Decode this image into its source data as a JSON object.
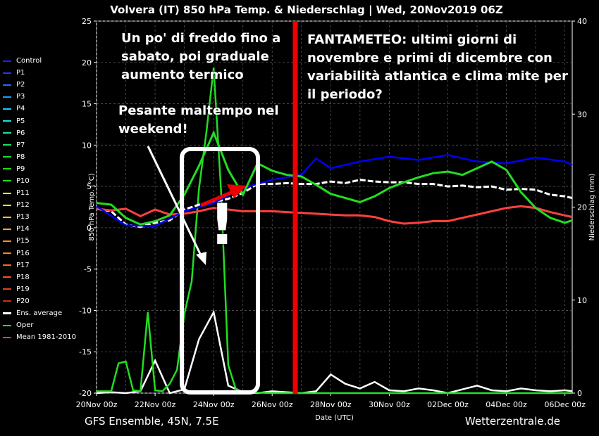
{
  "chart_data": {
    "type": "line",
    "title": "Volvera  (IT)  850 hPa Temp. & Niederschlag | Wed, 20Nov2019 06Z",
    "xlabel": "Date (UTC)",
    "ylabel": "850 hPa Temp. (°C)",
    "y2label": "Niederschlag (mm)",
    "x_ticks": [
      "20Nov 00z",
      "22Nov 00z",
      "24Nov 00z",
      "26Nov 00z",
      "28Nov 00z",
      "30Nov 00z",
      "02Dec 00z",
      "04Dec 00z",
      "06Dec 00z"
    ],
    "xlim_days": [
      0,
      16.25
    ],
    "ylim": [
      -20,
      25
    ],
    "y_ticks": [
      25,
      20,
      15,
      10,
      5,
      0,
      -5,
      -10,
      -15,
      -20
    ],
    "y2lim": [
      0,
      40
    ],
    "y2_ticks": [
      40,
      30,
      20,
      10,
      0
    ],
    "grid": true,
    "legend_position": "left",
    "series": [
      {
        "name": "Ens. average",
        "color": "#ffffff",
        "x_days": [
          0,
          0.5,
          1,
          1.5,
          2,
          2.5,
          3,
          3.5,
          4,
          4.5,
          5,
          5.5,
          6,
          6.5,
          7,
          7.5,
          8,
          8.5,
          9,
          9.5,
          10,
          10.5,
          11,
          11.5,
          12,
          12.5,
          13,
          13.5,
          14,
          14.5,
          15,
          15.5,
          16,
          16.25
        ],
        "temp": [
          2.3,
          2.0,
          0.4,
          0.1,
          0.6,
          0.9,
          2.2,
          2.8,
          3.1,
          3.5,
          4.2,
          5.3,
          5.3,
          5.4,
          5.3,
          5.3,
          5.6,
          5.4,
          5.8,
          5.6,
          5.5,
          5.5,
          5.3,
          5.3,
          5.0,
          5.1,
          4.9,
          5.0,
          4.6,
          4.7,
          4.6,
          4.0,
          3.8,
          3.6
        ]
      },
      {
        "name": "Mean 1981-2010",
        "color": "#ff4040",
        "x_days": [
          0,
          0.5,
          1,
          1.5,
          2,
          2.5,
          3,
          3.5,
          4,
          4.5,
          5,
          5.5,
          6,
          6.5,
          7,
          7.5,
          8,
          8.5,
          9,
          9.5,
          10,
          10.5,
          11,
          11.5,
          12,
          12.5,
          13,
          13.5,
          14,
          14.5,
          15,
          15.5,
          16,
          16.25
        ],
        "temp": [
          2.3,
          2.1,
          2.3,
          1.4,
          2.2,
          1.6,
          1.7,
          2.0,
          2.4,
          2.2,
          2.0,
          2.0,
          2.0,
          1.9,
          1.8,
          1.7,
          1.6,
          1.5,
          1.5,
          1.3,
          0.8,
          0.5,
          0.6,
          0.8,
          0.8,
          1.2,
          1.6,
          2.0,
          2.4,
          2.6,
          2.4,
          1.9,
          1.5,
          1.3
        ]
      },
      {
        "name": "Control",
        "color": "#0000ff",
        "x_days": [
          0,
          1,
          2,
          3,
          4,
          5,
          6,
          7,
          7.5,
          8,
          9,
          10,
          11,
          12,
          13,
          14,
          15,
          16,
          16.25
        ],
        "temp": [
          2.6,
          0.3,
          0.2,
          2.0,
          3.0,
          4.8,
          5.8,
          6.4,
          8.4,
          7.2,
          8.0,
          8.6,
          8.2,
          8.8,
          8.0,
          7.8,
          8.5,
          8.0,
          7.6
        ]
      },
      {
        "name": "Oper",
        "color": "#22dd22",
        "x_days": [
          0,
          0.5,
          1,
          1.5,
          2,
          2.5,
          3,
          3.5,
          4,
          4.5,
          5,
          5.5,
          6,
          6.5,
          7,
          7.5,
          8,
          8.5,
          9,
          9.5,
          10,
          10.5,
          11,
          11.5,
          12,
          12.5,
          13,
          13.5,
          14,
          14.5,
          15,
          15.5,
          16,
          16.25
        ],
        "temp": [
          3.0,
          2.8,
          1.2,
          0.4,
          0.8,
          1.5,
          4.0,
          7.5,
          11.5,
          7.0,
          4.0,
          7.8,
          6.9,
          6.4,
          6.2,
          5.2,
          4.1,
          3.6,
          3.1,
          3.8,
          4.8,
          5.5,
          6.1,
          6.6,
          6.8,
          6.4,
          7.2,
          8.0,
          7.0,
          4.3,
          2.4,
          1.2,
          0.6,
          0.9
        ]
      }
    ],
    "precip_series": [
      {
        "name": "Ens. average precip",
        "color": "#ffffff",
        "x_days": [
          0,
          0.5,
          1,
          1.5,
          2,
          2.5,
          3,
          3.5,
          4,
          4.5,
          5,
          5.5,
          6,
          6.5,
          7,
          7.5,
          8,
          8.5,
          9,
          9.5,
          10,
          10.5,
          11,
          11.5,
          12,
          12.5,
          13,
          13.5,
          14,
          14.5,
          15,
          15.5,
          16,
          16.25
        ],
        "precip": [
          0,
          0.1,
          0,
          0.2,
          3.5,
          0,
          0.4,
          5.8,
          8.7,
          0.8,
          0.1,
          0,
          0.2,
          0.1,
          0,
          0.2,
          2.0,
          1.0,
          0.5,
          1.2,
          0.3,
          0.2,
          0.5,
          0.3,
          0,
          0.4,
          0.8,
          0.3,
          0.2,
          0.5,
          0.3,
          0.2,
          0.3,
          0.2
        ]
      },
      {
        "name": "Oper precip",
        "color": "#22dd22",
        "x_days": [
          0,
          0.5,
          0.75,
          1,
          1.25,
          1.5,
          1.75,
          2,
          2.25,
          2.5,
          2.75,
          3,
          3.25,
          3.5,
          3.75,
          4,
          4.25,
          4.5,
          4.75,
          5,
          6,
          8,
          10,
          12,
          14,
          16,
          16.25
        ],
        "precip": [
          0.2,
          0.2,
          3.2,
          3.4,
          0.3,
          0.2,
          8.7,
          0.3,
          0.2,
          1.0,
          2.5,
          8.5,
          12.0,
          22.0,
          28.0,
          35.0,
          22.0,
          3.0,
          0.5,
          0.1,
          0,
          0,
          0,
          0,
          0,
          0,
          0
        ]
      }
    ],
    "legend": [
      "Control",
      "P1",
      "P2",
      "P3",
      "P4",
      "P5",
      "P6",
      "P7",
      "P8",
      "P9",
      "P10",
      "P11",
      "P12",
      "P13",
      "P14",
      "P15",
      "P16",
      "P17",
      "P18",
      "P19",
      "P20",
      "Ens. average",
      "Oper",
      "Mean 1981-2010"
    ],
    "legend_colors": [
      "#2020ff",
      "#1a3cff",
      "#1a6cff",
      "#1a9cff",
      "#1ac8ff",
      "#1ae0e0",
      "#1ae0a0",
      "#1ae060",
      "#1ae030",
      "#1ae000",
      "#22dd22",
      "#ffff20",
      "#ffe020",
      "#ffc820",
      "#ffb020",
      "#ff9820",
      "#ff8020",
      "#ff6820",
      "#ff5020",
      "#e84020",
      "#c83018",
      "#ffffff",
      "#22dd22",
      "#ff4040"
    ]
  },
  "annotations": {
    "note_top_left": "Un po' di freddo fino a sabato, poi graduale aumento termico",
    "note_weekend": "Pesante maltempo nel weekend!",
    "note_fantameteo": "FANTAMETEO: ultimi giorni di novembre e primi di dicembre con variabilità atlantica e clima mite per il periodo?",
    "exclamation": "!"
  },
  "footer": {
    "left": "GFS Ensemble, 45N, 7.5E",
    "right": "Wetterzentrale.de"
  }
}
